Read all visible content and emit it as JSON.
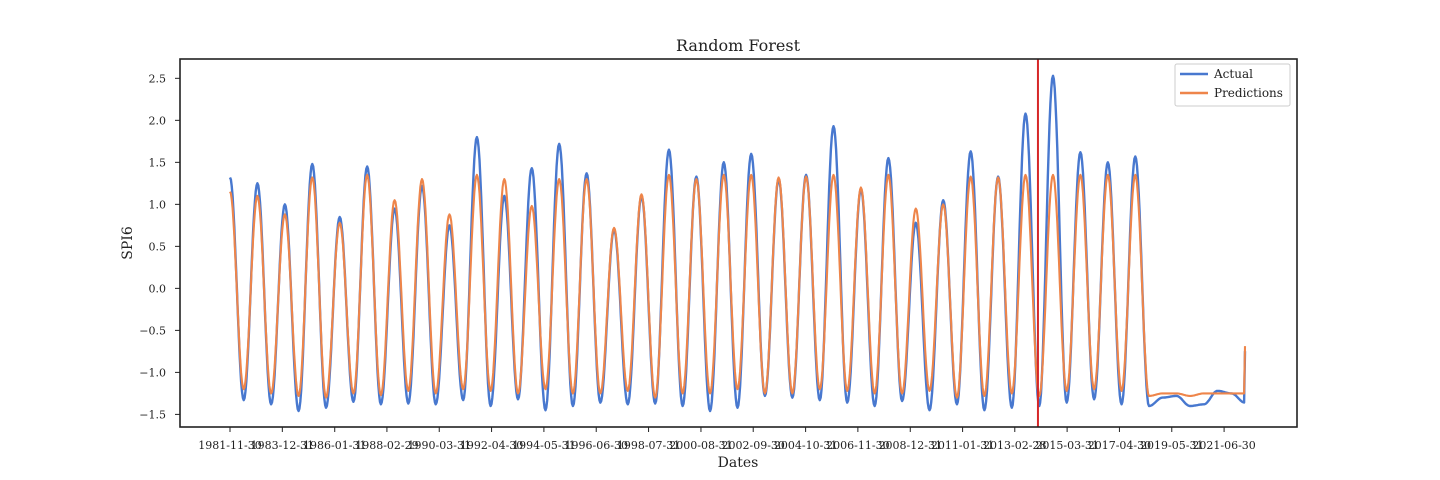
{
  "chart_data": {
    "type": "line",
    "title": "Random Forest",
    "xlabel": "Dates",
    "ylabel": "SPI6",
    "x_ticks": [
      "1981-11-30",
      "1983-12-31",
      "1986-01-31",
      "1988-02-29",
      "1990-03-31",
      "1992-04-30",
      "1994-05-31",
      "1996-06-30",
      "1998-07-31",
      "2000-08-31",
      "2002-09-30",
      "2004-10-31",
      "2006-11-30",
      "2008-12-31",
      "2011-01-31",
      "2013-02-28",
      "2015-03-31",
      "2017-04-30",
      "2019-05-31",
      "2021-06-30"
    ],
    "y_ticks": [
      -1.5,
      -1.0,
      -0.5,
      0.0,
      0.5,
      1.0,
      1.5,
      2.0,
      2.5
    ],
    "y_tick_labels": [
      "−1.5",
      "−1.0",
      "−0.5",
      "0.0",
      "0.5",
      "1.0",
      "1.5",
      "2.0",
      "2.5"
    ],
    "ylim": [
      -1.65,
      2.73
    ],
    "x_start": "1981-11-30",
    "x_end": "2022-04-30",
    "split_date": "2014-01-31",
    "split_color": "#d62728",
    "grid": false,
    "legend_position": "top-right",
    "series": [
      {
        "name": "Actual",
        "color": "#4878cf",
        "peaks": [
          1.32,
          1.25,
          1.0,
          1.48,
          0.85,
          1.45,
          0.95,
          1.22,
          0.75,
          1.8,
          1.1,
          1.43,
          1.72,
          1.37,
          0.7,
          1.1,
          1.65,
          1.33,
          1.5,
          1.6,
          1.3,
          1.35,
          1.93,
          1.18,
          1.55,
          0.78,
          1.05,
          1.63,
          1.33,
          2.08,
          2.53,
          1.62,
          1.5,
          1.57
        ],
        "troughs": [
          -1.33,
          -1.38,
          -1.46,
          -1.42,
          -1.35,
          -1.38,
          -1.37,
          -1.38,
          -1.33,
          -1.4,
          -1.32,
          -1.45,
          -1.4,
          -1.36,
          -1.38,
          -1.37,
          -1.4,
          -1.46,
          -1.42,
          -1.28,
          -1.3,
          -1.33,
          -1.36,
          -1.4,
          -1.34,
          -1.45,
          -1.38,
          -1.45,
          -1.42,
          -1.4,
          -1.36,
          -1.32,
          -1.38,
          -1.4,
          -1.3,
          -1.28,
          -1.4,
          -1.38,
          -1.22,
          -1.25,
          -1.36
        ]
      },
      {
        "name": "Predictions",
        "color": "#ee854a",
        "peaks": [
          1.15,
          1.1,
          0.88,
          1.32,
          0.78,
          1.35,
          1.05,
          1.3,
          0.88,
          1.35,
          1.3,
          0.98,
          1.3,
          1.3,
          0.72,
          1.12,
          1.35,
          1.3,
          1.35,
          1.35,
          1.32,
          1.33,
          1.35,
          1.2,
          1.35,
          0.95,
          1.0,
          1.33,
          1.32,
          1.35,
          1.35,
          1.35,
          1.35,
          1.35
        ],
        "troughs": [
          -1.2,
          -1.25,
          -1.28,
          -1.3,
          -1.25,
          -1.27,
          -1.22,
          -1.25,
          -1.2,
          -1.22,
          -1.25,
          -1.2,
          -1.25,
          -1.25,
          -1.22,
          -1.3,
          -1.25,
          -1.25,
          -1.2,
          -1.25,
          -1.25,
          -1.2,
          -1.22,
          -1.25,
          -1.25,
          -1.22,
          -1.3,
          -1.28,
          -1.25,
          -1.28,
          -1.22,
          -1.2,
          -1.22,
          -1.28,
          -1.25,
          -1.25,
          -1.28,
          -1.25,
          -1.25,
          -1.25,
          -1.25
        ]
      }
    ]
  }
}
